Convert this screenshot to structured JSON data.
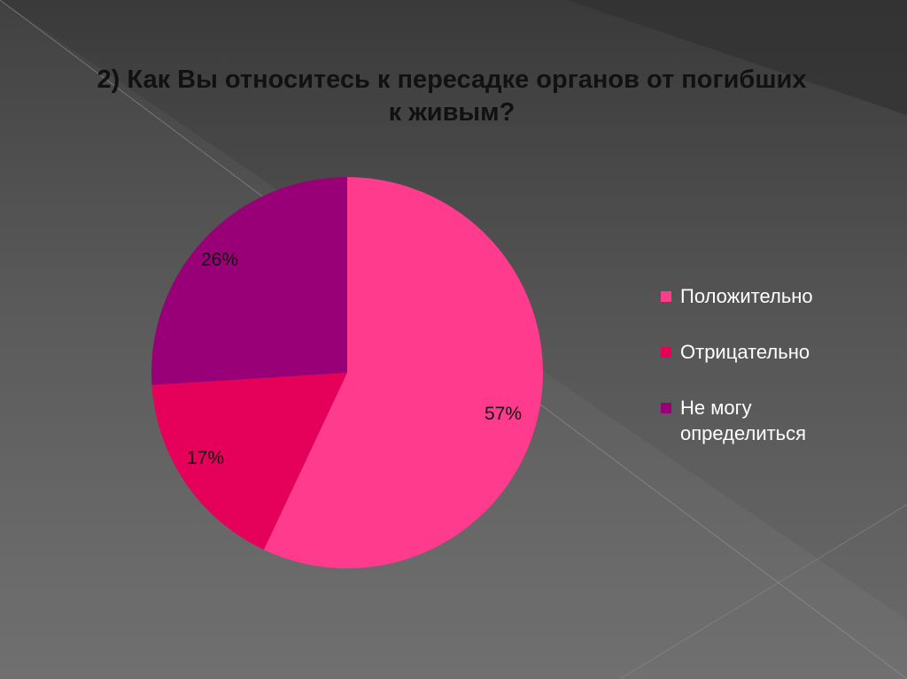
{
  "slide": {
    "title": "2) Как Вы относитесь к пересадке органов от погибших к живым?"
  },
  "chart_data": {
    "type": "pie",
    "title": "2) Как Вы относитесь к пересадке органов от погибших к живым?",
    "slices": [
      {
        "label": "Положительно",
        "value": 57,
        "display": "57%",
        "color": "#ff3b8d"
      },
      {
        "label": "Отрицательно",
        "value": 17,
        "display": "17%",
        "color": "#e5005a"
      },
      {
        "label": "Не могу определиться",
        "value": 26,
        "display": "26%",
        "color": "#990077"
      }
    ],
    "start_angle": "12 o'clock",
    "direction": "clockwise",
    "legend": {
      "position": "right"
    },
    "data_label_color": "#111111"
  }
}
